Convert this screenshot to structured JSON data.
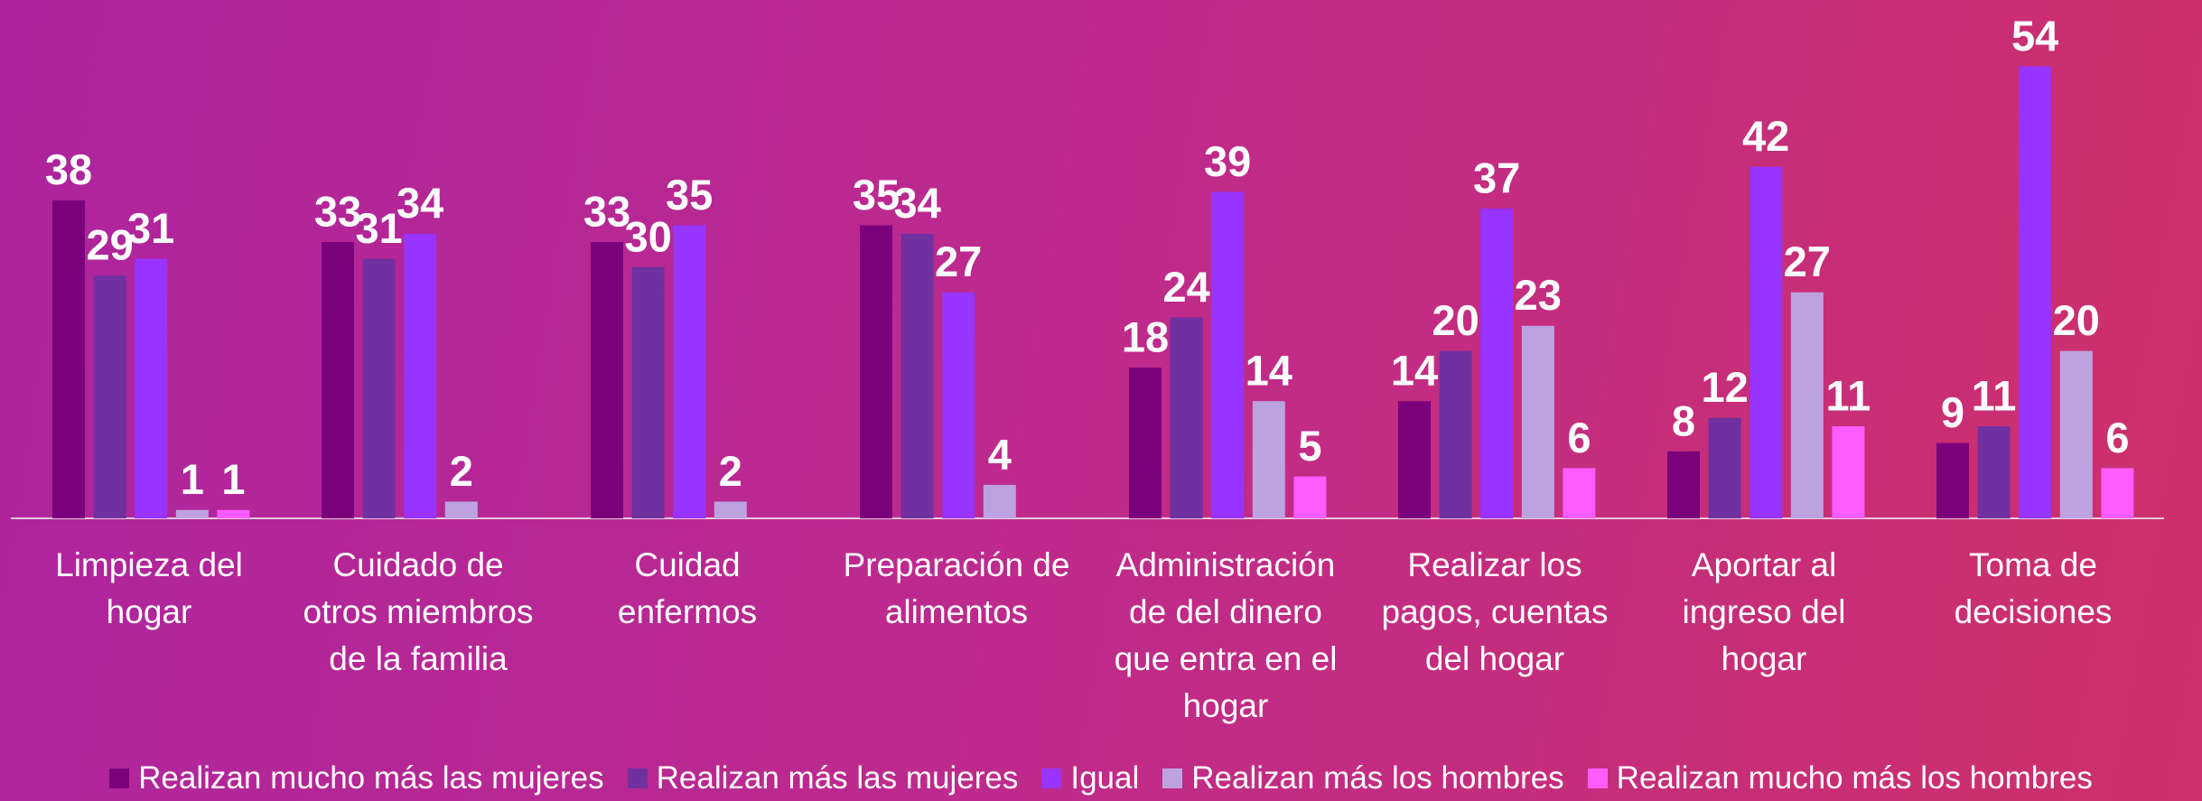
{
  "chart_data": {
    "type": "bar",
    "categories": [
      "Limpieza del\nhogar",
      "Cuidado de\notros miembros\nde la familia",
      "Cuidad\nenfermos",
      "Preparación de\nalimentos",
      "Administración\nde del dinero\nque entra en el\nhogar",
      "Realizar los\npagos, cuentas\ndel hogar",
      "Aportar al\ningreso del\nhogar",
      "Toma de\ndecisiones"
    ],
    "series": [
      {
        "name": "Realizan mucho más las mujeres",
        "color": "#7b007b",
        "values": [
          38,
          33,
          33,
          35,
          18,
          14,
          8,
          9
        ]
      },
      {
        "name": "Realizan más las mujeres",
        "color": "#7030a0",
        "values": [
          29,
          31,
          30,
          34,
          24,
          20,
          12,
          11
        ]
      },
      {
        "name": "Igual",
        "color": "#9933ff",
        "values": [
          31,
          34,
          35,
          27,
          39,
          37,
          42,
          54
        ]
      },
      {
        "name": "Realizan más los hombres",
        "color": "#bca3e0",
        "values": [
          1,
          2,
          2,
          4,
          14,
          23,
          27,
          20
        ]
      },
      {
        "name": "Realizan mucho más los hombres",
        "color": "#ff5cff",
        "values": [
          1,
          null,
          null,
          null,
          5,
          6,
          11,
          6
        ]
      }
    ],
    "legend": "bottom"
  }
}
